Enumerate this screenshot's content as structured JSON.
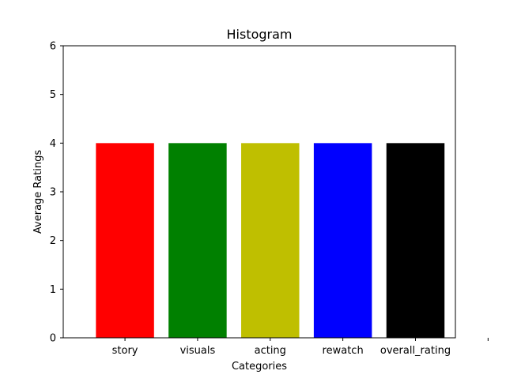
{
  "chart_data": {
    "type": "bar",
    "title": "Histogram",
    "xlabel": "Categories",
    "ylabel": "Average Ratings",
    "categories": [
      "story",
      "visuals",
      "acting",
      "rewatch",
      "overall_rating"
    ],
    "values": [
      4,
      4,
      4,
      4,
      4
    ],
    "colors": [
      "#ff0000",
      "#008000",
      "#bfbf00",
      "#0000ff",
      "#000000"
    ],
    "ylim": [
      0,
      6
    ],
    "yticks": [
      0,
      1,
      2,
      3,
      4,
      5,
      6
    ],
    "grid": false,
    "legend": "none"
  }
}
